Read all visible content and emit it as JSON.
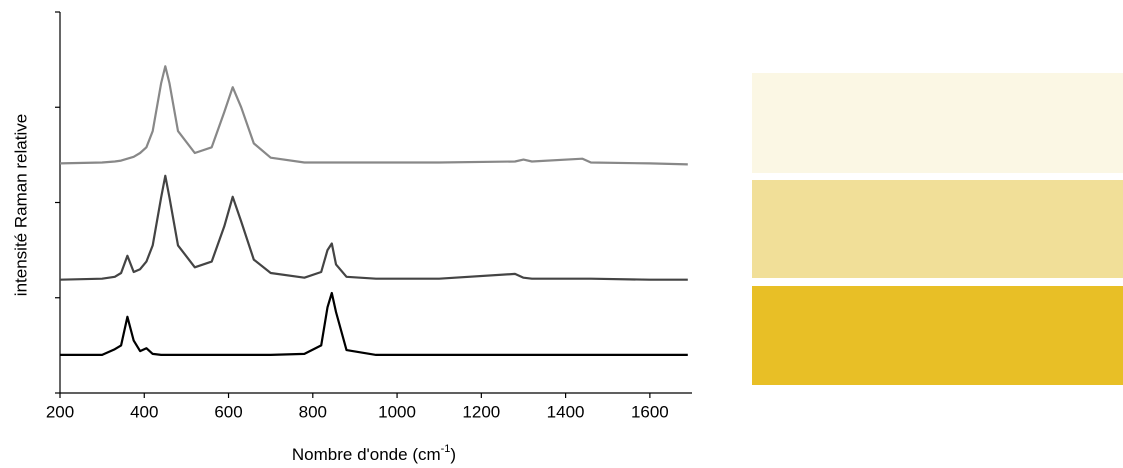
{
  "chart_data": {
    "type": "line",
    "x_label": [
      "Nombre d'onde (cm",
      "-1",
      ")"
    ],
    "y_label": "intensité Raman relative",
    "xlim": [
      200,
      1700
    ],
    "xticks": [
      200,
      400,
      600,
      800,
      1000,
      1200,
      1400,
      1600
    ],
    "ylim": [
      0,
      4
    ],
    "yticks": [
      0,
      1,
      2,
      3,
      4
    ],
    "x": [
      200,
      300,
      330,
      345,
      360,
      375,
      390,
      405,
      420,
      440,
      450,
      460,
      480,
      520,
      560,
      590,
      610,
      630,
      660,
      700,
      780,
      820,
      835,
      845,
      855,
      880,
      950,
      1100,
      1280,
      1300,
      1320,
      1440,
      1460,
      1600,
      1690
    ],
    "series": [
      {
        "color": "#888888",
        "values": [
          2.41,
          2.42,
          2.43,
          2.44,
          2.46,
          2.48,
          2.52,
          2.58,
          2.75,
          3.25,
          3.43,
          3.25,
          2.75,
          2.52,
          2.58,
          2.95,
          3.21,
          3.0,
          2.62,
          2.47,
          2.42,
          2.42,
          2.42,
          2.42,
          2.42,
          2.42,
          2.42,
          2.42,
          2.43,
          2.45,
          2.43,
          2.46,
          2.42,
          2.41,
          2.4
        ]
      },
      {
        "color": "#444444",
        "values": [
          1.19,
          1.2,
          1.22,
          1.26,
          1.44,
          1.27,
          1.3,
          1.38,
          1.55,
          2.05,
          2.28,
          2.05,
          1.55,
          1.32,
          1.38,
          1.75,
          2.06,
          1.8,
          1.4,
          1.26,
          1.21,
          1.27,
          1.5,
          1.57,
          1.35,
          1.22,
          1.2,
          1.2,
          1.25,
          1.21,
          1.2,
          1.2,
          1.2,
          1.19,
          1.19
        ]
      },
      {
        "color": "#000000",
        "values": [
          0.4,
          0.4,
          0.46,
          0.5,
          0.8,
          0.55,
          0.44,
          0.47,
          0.41,
          0.4,
          0.4,
          0.4,
          0.4,
          0.4,
          0.4,
          0.4,
          0.4,
          0.4,
          0.4,
          0.4,
          0.41,
          0.5,
          0.9,
          1.05,
          0.85,
          0.45,
          0.4,
          0.4,
          0.4,
          0.4,
          0.4,
          0.4,
          0.4,
          0.4,
          0.4
        ]
      }
    ]
  }
}
